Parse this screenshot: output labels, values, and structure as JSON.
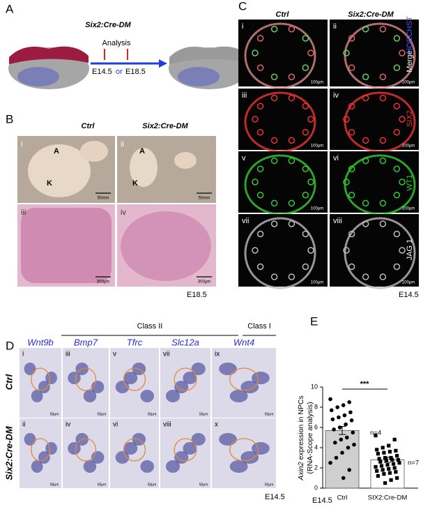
{
  "panel_a": {
    "label": "A",
    "title": "Six2:Cre-DM",
    "analysis": "Analysis",
    "stage1": "E14.5",
    "or": "or",
    "stage2": "E18.5"
  },
  "panel_b": {
    "label": "B",
    "columns": [
      "Ctrl",
      "Six2:Cre-DM"
    ],
    "images": [
      {
        "numeral": "i",
        "tags": [
          "A",
          "K"
        ],
        "scale": "50mm"
      },
      {
        "numeral": "ii",
        "tags": [
          "A",
          "K"
        ],
        "scale": "50mm"
      },
      {
        "numeral": "iii",
        "scale": "300μm"
      },
      {
        "numeral": "iv",
        "scale": "300μm"
      }
    ],
    "stage": "E18.5"
  },
  "panel_c": {
    "label": "C",
    "columns": [
      "Ctrl",
      "Six2:Cre-DM"
    ],
    "images": [
      {
        "numeral": "i",
        "scale": "100μm"
      },
      {
        "numeral": "ii",
        "scale": "100μm"
      },
      {
        "numeral": "iii",
        "scale": "100μm"
      },
      {
        "numeral": "iv",
        "scale": "100μm"
      },
      {
        "numeral": "v",
        "scale": "100μm"
      },
      {
        "numeral": "vi",
        "scale": "100μm"
      },
      {
        "numeral": "vii",
        "scale": "100μm"
      },
      {
        "numeral": "viii",
        "scale": "100μm"
      }
    ],
    "stains": [
      "Merge",
      "HOECHST",
      "SIX2",
      "WT1",
      "JAG 1"
    ],
    "stage": "E14.5"
  },
  "panel_d": {
    "label": "D",
    "groups": [
      "Class II",
      "Class I"
    ],
    "genes": [
      "Wnt9b",
      "Bmp7",
      "Tfrc",
      "Slc12a",
      "Wnt4"
    ],
    "rows": [
      "Ctrl",
      "Six2:Cre-DM"
    ],
    "numerals": [
      "i",
      "iii",
      "v",
      "vii",
      "ix",
      "ii",
      "iv",
      "vi",
      "viii",
      "x"
    ],
    "scale": "50μm",
    "stage": "E14.5"
  },
  "panel_e": {
    "label": "E"
  },
  "chart_data": {
    "type": "bar",
    "y_label_italic": "Axin2",
    "y_label": "expression in NPCs",
    "y_label2": "(RNA-Scope analysis)",
    "categories": [
      "Ctrl",
      "SIX2:Cre-DM"
    ],
    "values": [
      5.7,
      2.8
    ],
    "errors": [
      0.4,
      0.25
    ],
    "colors": [
      "#cfcfcf",
      "#ffffff"
    ],
    "points": [
      [
        8.8,
        8.5,
        8.2,
        8.0,
        7.7,
        7.5,
        7.2,
        7.0,
        6.8,
        6.7,
        6.3,
        6.0,
        5.8,
        5.5,
        5.0,
        4.8,
        4.5,
        4.3,
        4.0,
        3.5,
        3.0,
        2.5,
        1.8,
        1.0
      ],
      [
        5.2,
        4.8,
        4.2,
        4.0,
        3.8,
        3.7,
        3.6,
        3.5,
        3.4,
        3.2,
        3.0,
        3.0,
        2.9,
        2.8,
        2.8,
        2.7,
        2.6,
        2.5,
        2.4,
        2.3,
        2.2,
        2.1,
        2.0,
        1.9,
        1.8,
        1.7,
        1.6,
        1.5,
        1.4,
        1.2,
        1.0,
        0.8,
        0.5
      ]
    ],
    "ylim": [
      0,
      10
    ],
    "yticks": [
      0,
      2,
      4,
      6,
      8,
      10
    ],
    "significance": "***",
    "n_labels": [
      "n=4",
      "n=7"
    ],
    "stage": "E14.5"
  }
}
